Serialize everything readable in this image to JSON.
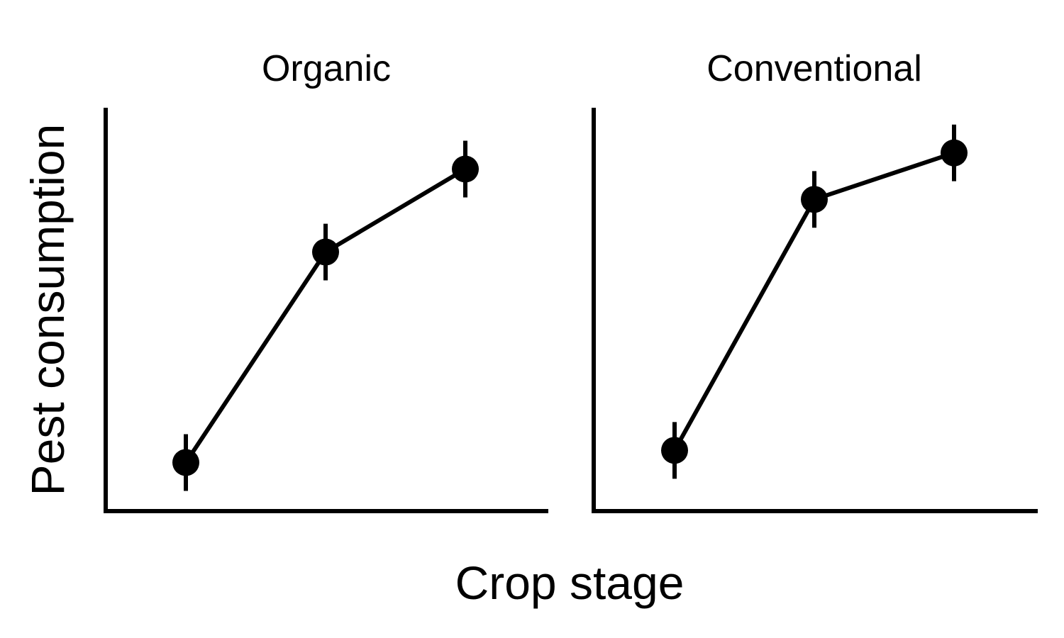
{
  "chart_data": {
    "type": "line",
    "xlabel": "Crop stage",
    "ylabel": "Pest consumption",
    "x": [
      1,
      2,
      3
    ],
    "ylim": [
      0,
      1
    ],
    "grid": false,
    "legend": "none",
    "colors": {
      "line": "#000000",
      "marker": "#000000",
      "axis": "#000000"
    },
    "panels": [
      {
        "title": "Organic",
        "series": [
          {
            "values": [
              0.12,
              0.64,
              0.845
            ],
            "error": [
              0.07,
              0.07,
              0.07
            ]
          }
        ]
      },
      {
        "title": "Conventional",
        "series": [
          {
            "values": [
              0.15,
              0.77,
              0.885
            ],
            "error": [
              0.07,
              0.07,
              0.07
            ]
          }
        ]
      }
    ]
  }
}
